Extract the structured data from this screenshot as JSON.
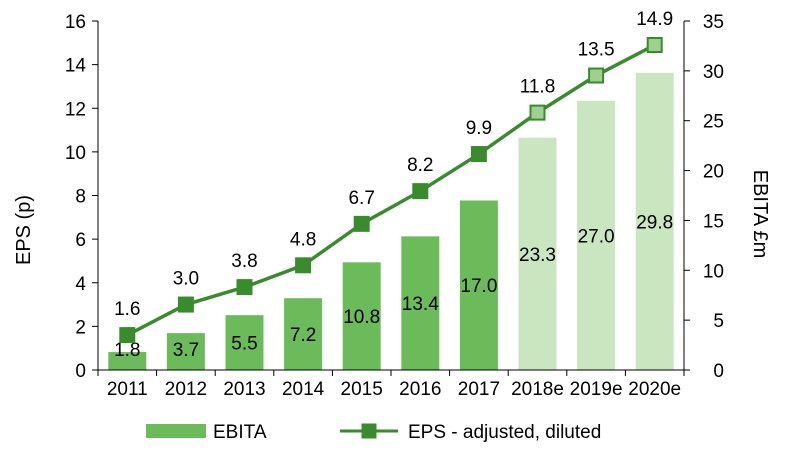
{
  "chart_data": {
    "type": "bar",
    "categories": [
      "2011",
      "2012",
      "2013",
      "2014",
      "2015",
      "2016",
      "2017",
      "2018e",
      "2019e",
      "2020e"
    ],
    "forecast_from_index": 7,
    "series": [
      {
        "name": "EBITA",
        "kind": "bar",
        "axis": "right",
        "values": [
          1.8,
          3.7,
          5.5,
          7.2,
          10.8,
          13.4,
          17.0,
          23.3,
          27.0,
          29.8
        ],
        "labels": [
          "1.8",
          "3.7",
          "5.5",
          "7.2",
          "10.8",
          "13.4",
          "17.0",
          "23.3",
          "27.0",
          "29.8"
        ],
        "color": "#6cbb5b",
        "forecast_color": "#c9e6c0"
      },
      {
        "name": "EPS - adjusted, diluted",
        "kind": "line",
        "axis": "left",
        "values": [
          1.6,
          3.0,
          3.8,
          4.8,
          6.7,
          8.2,
          9.9,
          11.8,
          13.5,
          14.9
        ],
        "labels": [
          "1.6",
          "3.0",
          "3.8",
          "4.8",
          "6.7",
          "8.2",
          "9.9",
          "11.8",
          "13.5",
          "14.9"
        ],
        "color": "#3a8a2e",
        "forecast_marker_fill": "#9fd08f"
      }
    ],
    "ylabel": "EPS (p)",
    "y2label": "EBITA £m",
    "ylim": [
      0,
      16
    ],
    "y2lim": [
      0,
      35
    ],
    "yticks": [
      0,
      2,
      4,
      6,
      8,
      10,
      12,
      14,
      16
    ],
    "y2ticks": [
      0,
      5,
      10,
      15,
      20,
      25,
      30,
      35
    ],
    "grid": false,
    "legend_position": "bottom"
  }
}
